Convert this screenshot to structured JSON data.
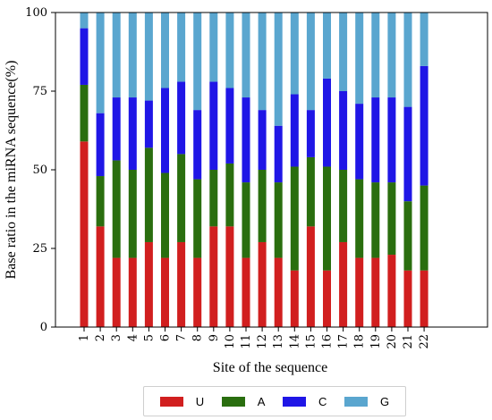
{
  "chart_data": {
    "type": "bar",
    "stacked": true,
    "xlabel": "Site of the sequence",
    "ylabel": "Base ratio in the miRNA sequence(%)",
    "ylim": [
      0,
      100
    ],
    "yticks": [
      0,
      25,
      50,
      75,
      100
    ],
    "categories": [
      "1",
      "2",
      "3",
      "4",
      "5",
      "6",
      "7",
      "8",
      "9",
      "10",
      "11",
      "12",
      "13",
      "14",
      "15",
      "16",
      "17",
      "18",
      "19",
      "20",
      "21",
      "22"
    ],
    "legend_position": "bottom-center",
    "grid": false,
    "series": [
      {
        "name": "U",
        "color": "#d11f1f",
        "values": [
          59,
          32,
          22,
          22,
          27,
          22,
          27,
          22,
          32,
          32,
          22,
          27,
          22,
          18,
          32,
          18,
          27,
          22,
          22,
          23,
          18,
          18
        ]
      },
      {
        "name": "A",
        "color": "#2a6e0f",
        "values": [
          18,
          16,
          31,
          28,
          30,
          27,
          28,
          25,
          18,
          20,
          24,
          23,
          24,
          33,
          22,
          33,
          23,
          25,
          24,
          23,
          22,
          27
        ]
      },
      {
        "name": "C",
        "color": "#1f16e6",
        "values": [
          18,
          20,
          20,
          23,
          15,
          27,
          23,
          22,
          28,
          24,
          27,
          19,
          18,
          23,
          15,
          28,
          25,
          24,
          27,
          27,
          30,
          38
        ]
      },
      {
        "name": "G",
        "color": "#5aa6cf",
        "values": [
          5,
          32,
          27,
          27,
          28,
          24,
          22,
          31,
          22,
          24,
          27,
          31,
          36,
          26,
          31,
          21,
          25,
          29,
          27,
          27,
          30,
          17
        ]
      }
    ]
  }
}
